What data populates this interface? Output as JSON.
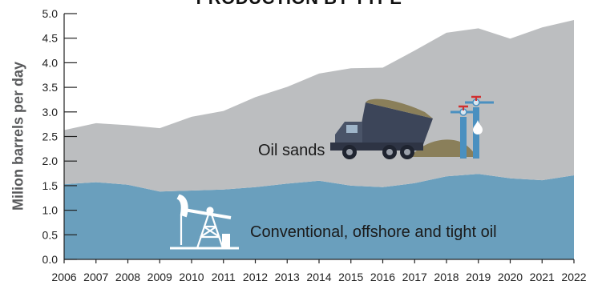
{
  "chart_data": {
    "type": "area",
    "title": "PRODUCTION BY TYPE",
    "ylabel": "Milion barrels per day",
    "xlabel": "",
    "ylim": [
      0,
      5.0
    ],
    "y_ticks": [
      "0.0",
      "0.5",
      "1.0",
      "1.5",
      "2.0",
      "2.5",
      "3.0",
      "3.5",
      "4.0",
      "4.5",
      "5.0"
    ],
    "x": [
      "2006",
      "2007",
      "2008",
      "2009",
      "2010",
      "2011",
      "2012",
      "2013",
      "2014",
      "2015",
      "2016",
      "2017",
      "2018",
      "2019",
      "2020",
      "2021",
      "2022"
    ],
    "series": [
      {
        "name": "Conventional, offshore and tight oil",
        "color": "#6a9fbd",
        "values": [
          1.53,
          1.57,
          1.52,
          1.38,
          1.4,
          1.42,
          1.47,
          1.54,
          1.6,
          1.5,
          1.47,
          1.55,
          1.69,
          1.74,
          1.65,
          1.61,
          1.71
        ]
      },
      {
        "name": "Oil sands",
        "color": "#bcbec0",
        "values": [
          1.1,
          1.2,
          1.21,
          1.29,
          1.5,
          1.6,
          1.83,
          1.97,
          2.18,
          2.39,
          2.43,
          2.7,
          2.92,
          2.96,
          2.84,
          3.11,
          3.16
        ]
      }
    ],
    "stacked": true,
    "grid": false,
    "legend": "none"
  },
  "icons": [
    "oil-pump-jack-icon",
    "dump-truck-icon",
    "oil-well-valve-icon"
  ]
}
